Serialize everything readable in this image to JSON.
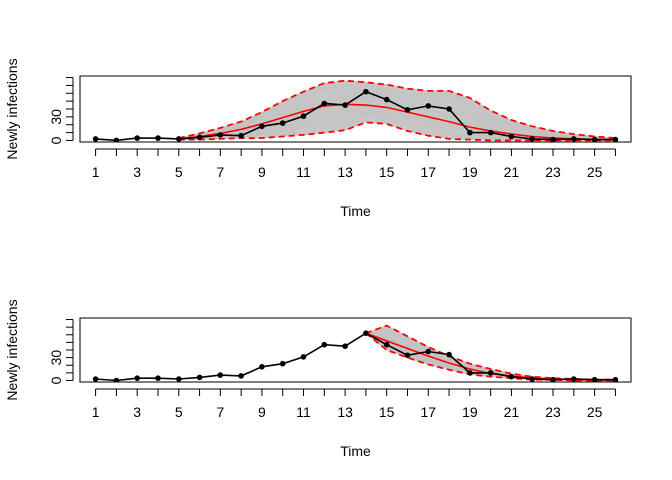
{
  "chart_data": [
    {
      "type": "line",
      "xlabel": "Time",
      "ylabel": "Newly infections",
      "xlim": [
        0.25,
        26.75
      ],
      "ylim": [
        -2,
        82
      ],
      "x_ticks": [
        1,
        2,
        3,
        4,
        5,
        6,
        7,
        8,
        9,
        10,
        11,
        12,
        13,
        14,
        15,
        16,
        17,
        18,
        19,
        20,
        21,
        22,
        23,
        24,
        25,
        26
      ],
      "x_tick_labels": [
        "1",
        "3",
        "5",
        "7",
        "9",
        "11",
        "13",
        "15",
        "17",
        "19",
        "21",
        "23",
        "25"
      ],
      "y_ticks": [
        0,
        10,
        20,
        30,
        40,
        50,
        60,
        70,
        80
      ],
      "y_tick_labels": [
        "0",
        "30"
      ],
      "observed": {
        "x": [
          1,
          2,
          3,
          4,
          5,
          6,
          7,
          8,
          9,
          10,
          11,
          12,
          13,
          14,
          15,
          16,
          17,
          18,
          19,
          20,
          21,
          22,
          23,
          24,
          25,
          26
        ],
        "y": [
          2,
          0,
          3,
          3,
          2,
          4,
          7,
          6,
          18,
          22,
          31,
          47,
          45,
          62,
          52,
          39,
          44,
          40,
          10,
          10,
          5,
          2,
          1,
          2,
          1,
          1
        ],
        "color": "#000000"
      },
      "median": {
        "x": [
          5,
          6,
          7,
          8,
          9,
          10,
          11,
          12,
          13,
          14,
          15,
          16,
          17,
          18,
          19,
          20,
          21,
          22,
          23,
          24,
          25,
          26
        ],
        "y": [
          2,
          5,
          9,
          14,
          21,
          29,
          37,
          44,
          46,
          45,
          42,
          36,
          30,
          24,
          17,
          12,
          8,
          5,
          3,
          2,
          1,
          1
        ],
        "color": "#ff0000"
      },
      "upper": {
        "x": [
          5,
          6,
          7,
          8,
          9,
          10,
          11,
          12,
          13,
          14,
          15,
          16,
          17,
          18,
          19,
          20,
          21,
          22,
          23,
          24,
          25,
          26
        ],
        "y": [
          3,
          9,
          16,
          24,
          36,
          50,
          62,
          73,
          76,
          74,
          71,
          66,
          63,
          63,
          54,
          38,
          26,
          18,
          12,
          8,
          5,
          3
        ],
        "color": "#ff0000"
      },
      "lower": {
        "x": [
          5,
          6,
          7,
          8,
          9,
          10,
          11,
          12,
          13,
          14,
          15,
          16,
          17,
          18,
          19,
          20,
          21,
          22,
          23,
          24,
          25,
          26
        ],
        "y": [
          1,
          1,
          2,
          3,
          3,
          5,
          7,
          10,
          13,
          23,
          21,
          12,
          6,
          2,
          1,
          0,
          0,
          0,
          0,
          0,
          0,
          0
        ],
        "color": "#ff0000"
      },
      "band_color": "#bebebe",
      "grid": false
    },
    {
      "type": "line",
      "xlabel": "Time",
      "ylabel": "Newly infections",
      "xlim": [
        0.25,
        26.75
      ],
      "ylim": [
        -2,
        82
      ],
      "x_ticks": [
        1,
        2,
        3,
        4,
        5,
        6,
        7,
        8,
        9,
        10,
        11,
        12,
        13,
        14,
        15,
        16,
        17,
        18,
        19,
        20,
        21,
        22,
        23,
        24,
        25,
        26
      ],
      "x_tick_labels": [
        "1",
        "3",
        "5",
        "7",
        "9",
        "11",
        "13",
        "15",
        "17",
        "19",
        "21",
        "23",
        "25"
      ],
      "y_ticks": [
        0,
        10,
        20,
        30,
        40,
        50,
        60,
        70,
        80
      ],
      "y_tick_labels": [
        "0",
        "30"
      ],
      "observed": {
        "x": [
          1,
          2,
          3,
          4,
          5,
          6,
          7,
          8,
          9,
          10,
          11,
          12,
          13,
          14,
          15,
          16,
          17,
          18,
          19,
          20,
          21,
          22,
          23,
          24,
          25,
          26
        ],
        "y": [
          2,
          0,
          3,
          3,
          2,
          4,
          7,
          6,
          18,
          22,
          31,
          47,
          45,
          62,
          47,
          33,
          38,
          34,
          10,
          10,
          5,
          2,
          1,
          2,
          1,
          1
        ],
        "color": "#000000"
      },
      "median": {
        "x": [
          14,
          15,
          16,
          17,
          18,
          19,
          20,
          21,
          22,
          23,
          24,
          25,
          26
        ],
        "y": [
          62,
          52,
          42,
          32,
          23,
          15,
          9,
          6,
          3,
          2,
          1,
          1,
          0
        ],
        "color": "#ff0000"
      },
      "upper": {
        "x": [
          14,
          15,
          16,
          17,
          18,
          19,
          20,
          21,
          22,
          23,
          24,
          25,
          26
        ],
        "y": [
          62,
          72,
          58,
          44,
          32,
          22,
          15,
          9,
          5,
          3,
          2,
          1,
          1
        ],
        "color": "#ff0000"
      },
      "lower": {
        "x": [
          14,
          15,
          16,
          17,
          18,
          19,
          20,
          21,
          22,
          23,
          24,
          25,
          26
        ],
        "y": [
          62,
          40,
          30,
          21,
          14,
          8,
          5,
          3,
          1,
          1,
          0,
          0,
          0
        ],
        "color": "#ff0000"
      },
      "band_color": "#bebebe",
      "grid": false
    }
  ]
}
